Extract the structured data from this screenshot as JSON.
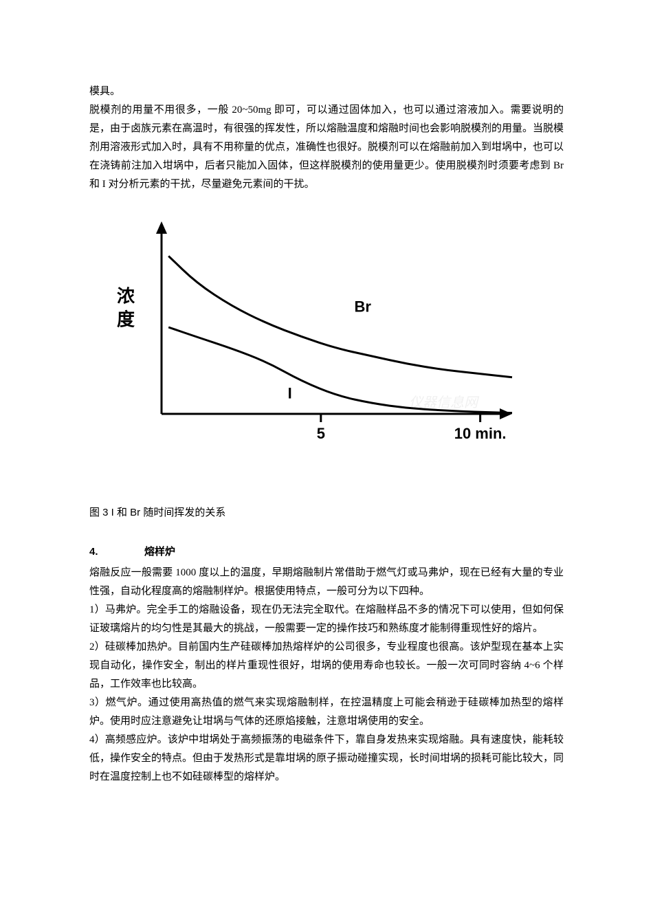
{
  "continuation": "模具。",
  "intro_paragraph": "脱模剂的用量不用很多，一般 20~50mg 即可，可以通过固体加入，也可以通过溶液加入。需要说明的是，由于卤族元素在高温时，有很强的挥发性，所以熔融温度和熔融时间也会影响脱模剂的用量。当脱模剂用溶液形式加入时，具有不用称量的优点，准确性也很好。脱模剂可以在熔融前加入到坩埚中，也可以在浇铸前注加入坩埚中，后者只能加入固体，但这样脱模剂的使用量更少。使用脱模剂时须要考虑到 Br 和 I 对分析元素的干扰，尽量避免元素间的干扰。",
  "figure": {
    "caption": "图 3  I 和 Br 随时间挥发的关系",
    "y_axis_label": "浓  度",
    "x_axis_ticks": [
      "5",
      "10 min."
    ],
    "series": {
      "Br": {
        "label": "Br",
        "color": "#000000",
        "stroke_width": 3,
        "label_fontsize": 22,
        "label_fontweight": "bold",
        "points": [
          {
            "x": 0.02,
            "y": 0.82
          },
          {
            "x": 0.1,
            "y": 0.68
          },
          {
            "x": 0.2,
            "y": 0.56
          },
          {
            "x": 0.3,
            "y": 0.47
          },
          {
            "x": 0.4,
            "y": 0.4
          },
          {
            "x": 0.5,
            "y": 0.34
          },
          {
            "x": 0.6,
            "y": 0.3
          },
          {
            "x": 0.7,
            "y": 0.26
          },
          {
            "x": 0.8,
            "y": 0.23
          },
          {
            "x": 0.9,
            "y": 0.21
          },
          {
            "x": 1.0,
            "y": 0.19
          }
        ]
      },
      "I": {
        "label": "I",
        "color": "#000000",
        "stroke_width": 3,
        "label_fontsize": 22,
        "label_fontweight": "bold",
        "points": [
          {
            "x": 0.02,
            "y": 0.45
          },
          {
            "x": 0.1,
            "y": 0.4
          },
          {
            "x": 0.2,
            "y": 0.34
          },
          {
            "x": 0.3,
            "y": 0.27
          },
          {
            "x": 0.4,
            "y": 0.17
          },
          {
            "x": 0.5,
            "y": 0.095
          },
          {
            "x": 0.6,
            "y": 0.055
          },
          {
            "x": 0.7,
            "y": 0.03
          },
          {
            "x": 0.8,
            "y": 0.018
          },
          {
            "x": 0.9,
            "y": 0.01
          },
          {
            "x": 1.0,
            "y": 0.005
          }
        ]
      }
    },
    "axis_color": "#000000",
    "axis_width": 3,
    "xlim": [
      0,
      11
    ],
    "tick_positions": [
      5,
      10
    ],
    "watermark_text": "仪器信息网"
  },
  "section4": {
    "number": "4.",
    "title": "熔样炉",
    "intro": "熔融反应一般需要 1000 度以上的温度，早期熔融制片常借助于燃气灯或马弗炉，现在已经有大量的专业性强，自动化程度高的熔融制样炉。根据使用特点，一般可分为以下四种。",
    "items": [
      "1）马弗炉。完全手工的熔融设备，现在仍无法完全取代。在熔融样品不多的情况下可以使用，但如何保证玻璃熔片的均匀性是其最大的挑战，一般需要一定的操作技巧和熟练度才能制得重现性好的熔片。",
      "2）硅碳棒加热炉。目前国内生产硅碳棒加热熔样炉的公司很多，专业程度也很高。该炉型现在基本上实现自动化，操作安全，制出的样片重现性很好，坩埚的使用寿命也较长。一般一次可同时容纳 4~6 个样品，工作效率也比较高。",
      "3）燃气炉。通过使用高热值的燃气来实现熔融制样，在控温精度上可能会稍逊于硅碳棒加热型的熔样炉。使用时应注意避免让坩埚与气体的还原焰接触，注意坩埚使用的安全。",
      "4）高频感应炉。该炉中坩埚处于高频振荡的电磁条件下，靠自身发热来实现熔融。具有速度快，能耗较低，操作安全的特点。但由于发热形式是靠坩埚的原子振动碰撞实现，长时间坩埚的损耗可能比较大，同时在温度控制上也不如硅碳棒型的熔样炉。"
    ]
  }
}
